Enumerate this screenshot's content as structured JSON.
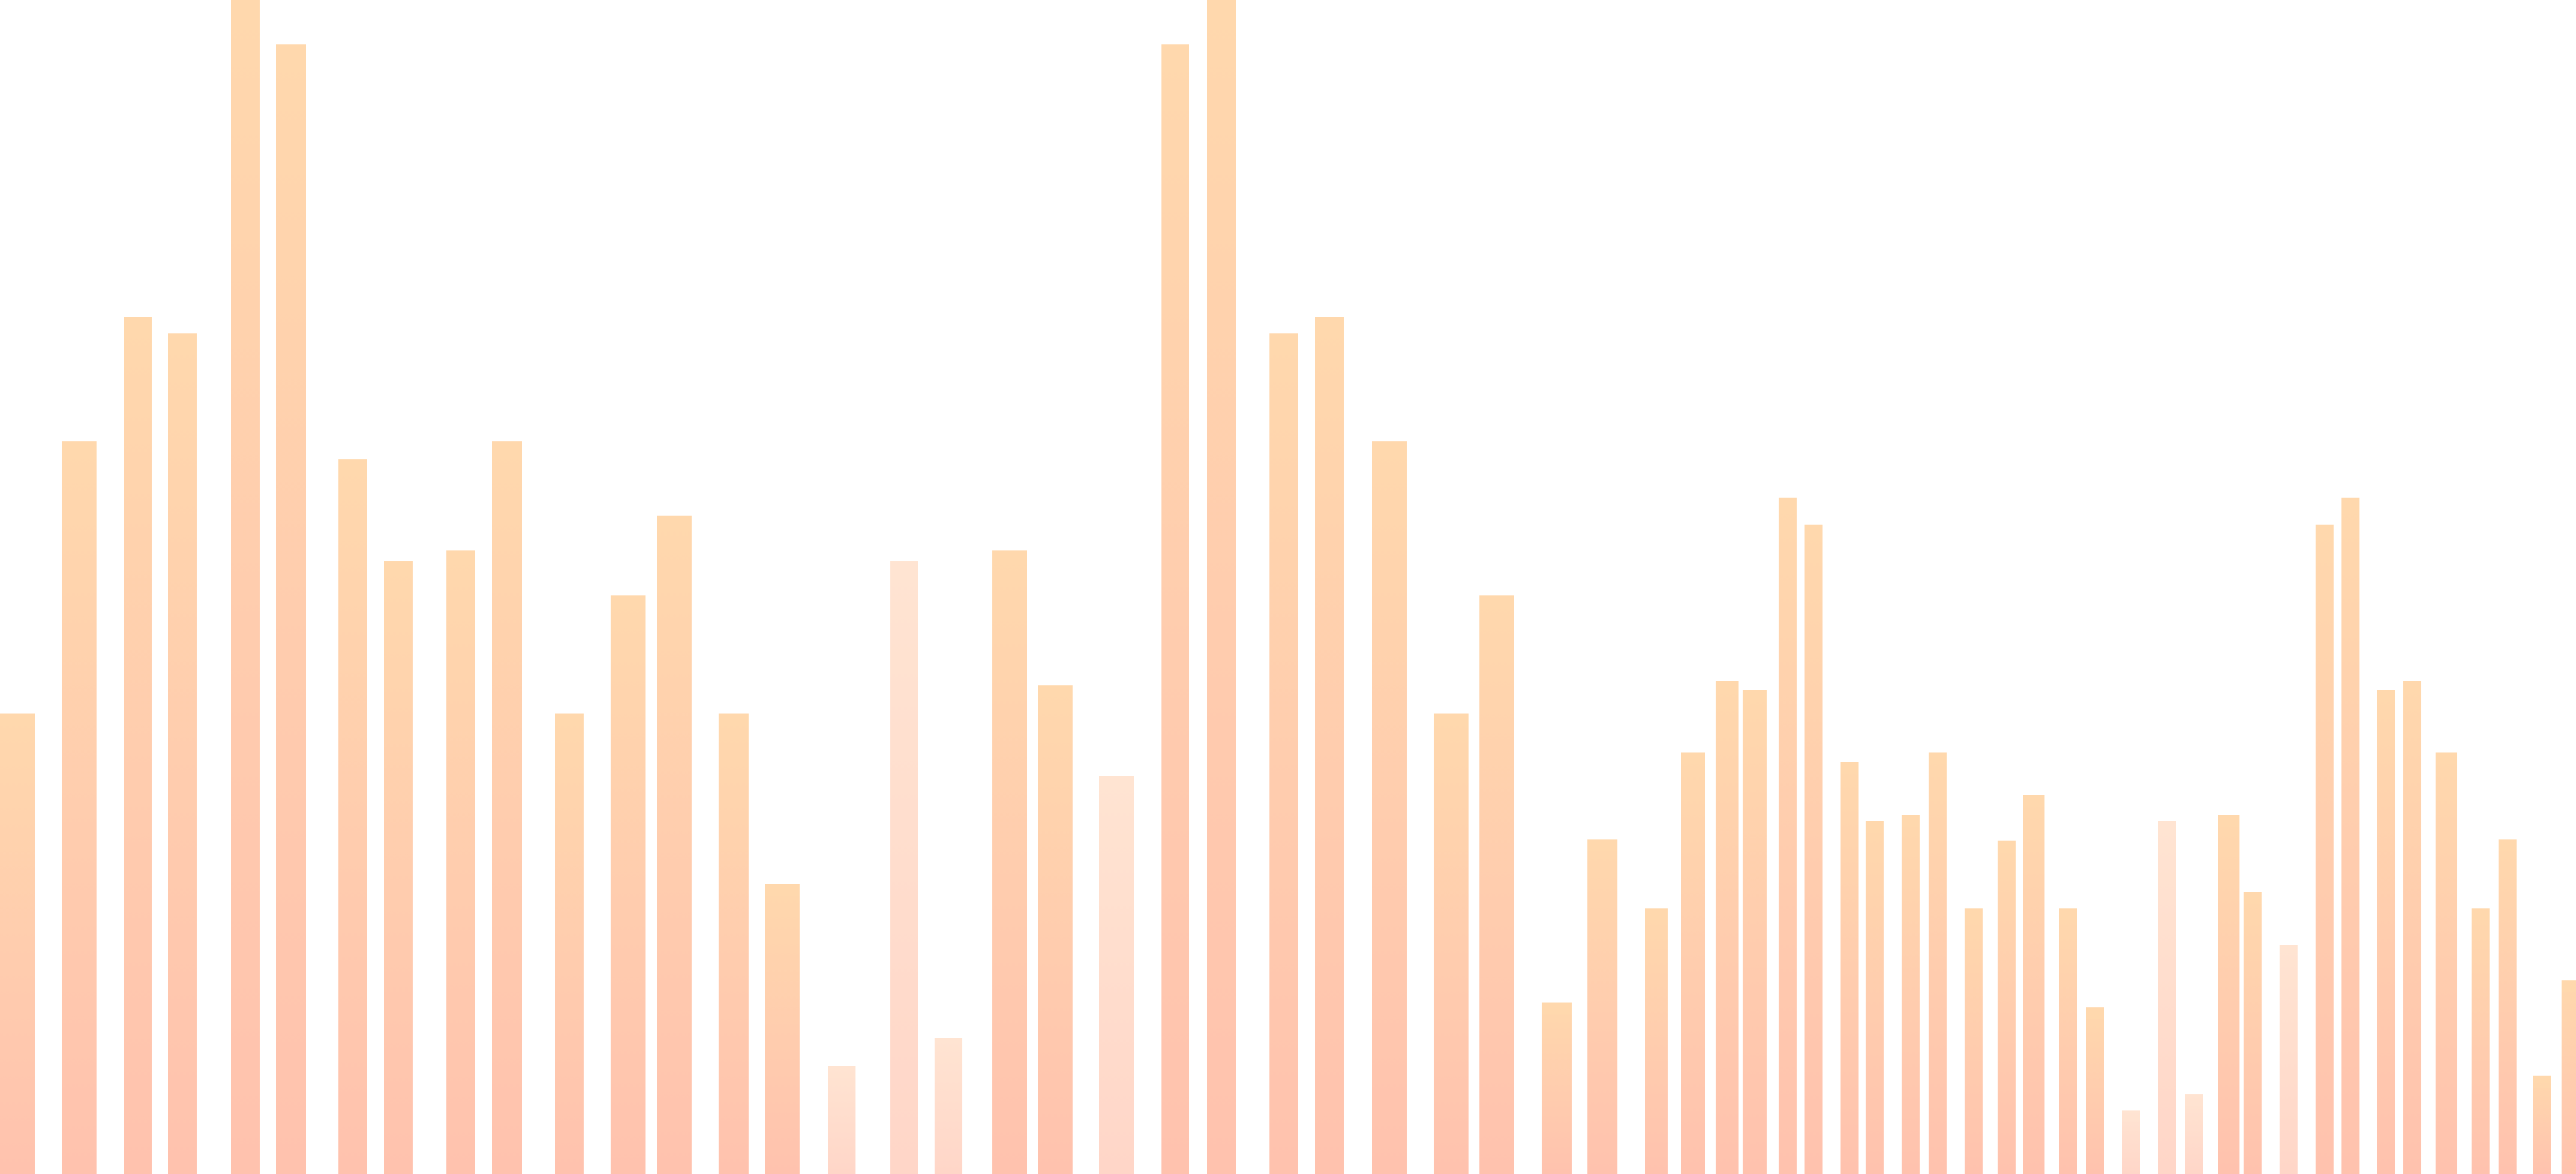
{
  "palette": {
    "top": "#ffd8ad",
    "bottom": "#ffc2ae",
    "light_top": "#ffe4d2",
    "light_bottom": "#ffd6c8"
  },
  "bars": [
    {
      "level": 0.392,
      "tone": "normal"
    },
    {
      "level": 0.624,
      "tone": "normal"
    },
    {
      "level": 0.73,
      "tone": "normal"
    },
    {
      "level": 0.716,
      "tone": "normal"
    },
    {
      "level": 1.0,
      "tone": "normal"
    },
    {
      "level": 0.962,
      "tone": "normal"
    },
    {
      "level": 0.609,
      "tone": "normal"
    },
    {
      "level": 0.522,
      "tone": "normal"
    },
    {
      "level": 0.531,
      "tone": "normal"
    },
    {
      "level": 0.624,
      "tone": "normal"
    },
    {
      "level": 0.392,
      "tone": "normal"
    },
    {
      "level": 0.493,
      "tone": "normal"
    },
    {
      "level": 0.561,
      "tone": "normal"
    },
    {
      "level": 0.392,
      "tone": "normal"
    },
    {
      "level": 0.247,
      "tone": "normal"
    },
    {
      "level": 0.092,
      "tone": "light"
    },
    {
      "level": 0.522,
      "tone": "light"
    },
    {
      "level": 0.116,
      "tone": "light"
    },
    {
      "level": 0.531,
      "tone": "normal"
    },
    {
      "level": 0.416,
      "tone": "normal"
    },
    {
      "level": 0.339,
      "tone": "light"
    },
    {
      "level": 0.962,
      "tone": "normal"
    },
    {
      "level": 1.0,
      "tone": "normal"
    },
    {
      "level": 0.716,
      "tone": "normal"
    },
    {
      "level": 0.73,
      "tone": "normal"
    },
    {
      "level": 0.624,
      "tone": "normal"
    },
    {
      "level": 0.392,
      "tone": "normal"
    },
    {
      "level": 0.493,
      "tone": "normal"
    },
    {
      "level": 0.146,
      "tone": "normal"
    },
    {
      "level": 0.285,
      "tone": "normal"
    },
    {
      "level": 0.226,
      "tone": "normal"
    },
    {
      "level": 0.359,
      "tone": "normal"
    },
    {
      "level": 0.42,
      "tone": "normal"
    },
    {
      "level": 0.412,
      "tone": "normal"
    },
    {
      "level": 0.576,
      "tone": "normal"
    },
    {
      "level": 0.553,
      "tone": "normal"
    },
    {
      "level": 0.351,
      "tone": "normal"
    },
    {
      "level": 0.301,
      "tone": "normal"
    },
    {
      "level": 0.306,
      "tone": "normal"
    },
    {
      "level": 0.359,
      "tone": "normal"
    },
    {
      "level": 0.226,
      "tone": "normal"
    },
    {
      "level": 0.284,
      "tone": "normal"
    },
    {
      "level": 0.323,
      "tone": "normal"
    },
    {
      "level": 0.226,
      "tone": "normal"
    },
    {
      "level": 0.142,
      "tone": "normal"
    },
    {
      "level": 0.054,
      "tone": "light"
    },
    {
      "level": 0.301,
      "tone": "light"
    },
    {
      "level": 0.068,
      "tone": "light"
    },
    {
      "level": 0.306,
      "tone": "normal"
    },
    {
      "level": 0.24,
      "tone": "normal"
    },
    {
      "level": 0.195,
      "tone": "light"
    },
    {
      "level": 0.553,
      "tone": "normal"
    },
    {
      "level": 0.576,
      "tone": "normal"
    },
    {
      "level": 0.412,
      "tone": "normal"
    },
    {
      "level": 0.42,
      "tone": "normal"
    },
    {
      "level": 0.359,
      "tone": "normal"
    },
    {
      "level": 0.226,
      "tone": "normal"
    },
    {
      "level": 0.285,
      "tone": "normal"
    },
    {
      "level": 0.084,
      "tone": "normal"
    },
    {
      "level": 0.165,
      "tone": "normal"
    }
  ]
}
